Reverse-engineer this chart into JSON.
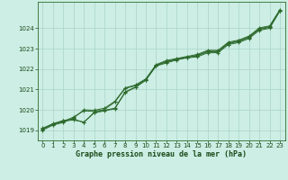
{
  "title": "Graphe pression niveau de la mer (hPa)",
  "bg_color": "#cceee4",
  "grid_color": "#aad4c8",
  "line_color": "#2d6a2d",
  "text_color": "#1a4a1a",
  "xlim": [
    -0.5,
    23.5
  ],
  "ylim": [
    1018.5,
    1025.3
  ],
  "yticks": [
    1019,
    1020,
    1021,
    1022,
    1023,
    1024
  ],
  "xticks": [
    0,
    1,
    2,
    3,
    4,
    5,
    6,
    7,
    8,
    9,
    10,
    11,
    12,
    13,
    14,
    15,
    16,
    17,
    18,
    19,
    20,
    21,
    22,
    23
  ],
  "series": [
    [
      1019.1,
      1019.3,
      1019.45,
      1019.5,
      1019.4,
      1019.85,
      1019.95,
      1020.05,
      1020.85,
      1021.1,
      1021.45,
      1022.15,
      1022.3,
      1022.45,
      1022.55,
      1022.6,
      1022.8,
      1022.8,
      1023.2,
      1023.3,
      1023.5,
      1023.9,
      1024.0,
      1024.85
    ],
    [
      1019.05,
      1019.28,
      1019.42,
      1019.65,
      1019.95,
      1019.92,
      1020.02,
      1020.38,
      1021.05,
      1021.18,
      1021.48,
      1022.18,
      1022.38,
      1022.48,
      1022.58,
      1022.68,
      1022.88,
      1022.88,
      1023.28,
      1023.38,
      1023.58,
      1023.98,
      1024.08,
      1024.88
    ],
    [
      1019.0,
      1019.25,
      1019.38,
      1019.6,
      1020.0,
      1019.98,
      1020.08,
      1020.42,
      1021.08,
      1021.22,
      1021.52,
      1022.22,
      1022.42,
      1022.52,
      1022.62,
      1022.72,
      1022.92,
      1022.92,
      1023.32,
      1023.42,
      1023.62,
      1024.02,
      1024.12,
      1024.92
    ],
    [
      1019.08,
      1019.32,
      1019.48,
      1019.55,
      1019.38,
      1019.88,
      1019.98,
      1020.08,
      1020.88,
      1021.12,
      1021.48,
      1022.18,
      1022.35,
      1022.48,
      1022.58,
      1022.65,
      1022.85,
      1022.85,
      1023.25,
      1023.35,
      1023.55,
      1023.95,
      1024.05,
      1024.88
    ]
  ]
}
